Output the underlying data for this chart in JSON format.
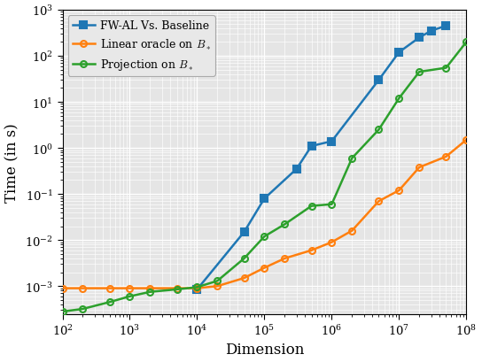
{
  "title": "",
  "xlabel": "Dimension",
  "ylabel": "Time (in s)",
  "xlim": [
    100.0,
    100000000.0
  ],
  "ylim": [
    0.00025,
    1000.0
  ],
  "series": [
    {
      "label": "FW-AL Vs. Baseline",
      "color": "#1f77b4",
      "marker": "s",
      "markerfacecolor": "#1f77b4",
      "x": [
        10000.0,
        50000.0,
        100000.0,
        300000.0,
        500000.0,
        1000000.0,
        5000000.0,
        10000000.0,
        20000000.0,
        30000000.0,
        50000000.0
      ],
      "y": [
        0.00085,
        0.015,
        0.08,
        0.35,
        1.1,
        1.4,
        30,
        120,
        250,
        350,
        450
      ]
    },
    {
      "label": "Linear oracle on $B_*$",
      "color": "#ff7f0e",
      "marker": "o",
      "markerfacecolor": "none",
      "x": [
        100.0,
        200.0,
        500.0,
        1000.0,
        2000.0,
        5000.0,
        10000.0,
        20000.0,
        50000.0,
        100000.0,
        200000.0,
        500000.0,
        1000000.0,
        2000000.0,
        5000000.0,
        10000000.0,
        20000000.0,
        50000000.0,
        100000000.0
      ],
      "y": [
        0.0009,
        0.0009,
        0.0009,
        0.0009,
        0.0009,
        0.0009,
        0.0009,
        0.001,
        0.0015,
        0.0025,
        0.004,
        0.006,
        0.009,
        0.016,
        0.07,
        0.12,
        0.38,
        0.65,
        1.5
      ]
    },
    {
      "label": "Projection on $B_*$",
      "color": "#2ca02c",
      "marker": "o",
      "markerfacecolor": "none",
      "x": [
        100.0,
        200.0,
        500.0,
        1000.0,
        2000.0,
        5000.0,
        10000.0,
        20000.0,
        50000.0,
        100000.0,
        200000.0,
        500000.0,
        1000000.0,
        2000000.0,
        5000000.0,
        10000000.0,
        20000000.0,
        50000000.0,
        100000000.0
      ],
      "y": [
        0.00028,
        0.00032,
        0.00045,
        0.0006,
        0.00075,
        0.00085,
        0.00095,
        0.0013,
        0.004,
        0.012,
        0.022,
        0.055,
        0.06,
        0.6,
        2.5,
        12,
        45,
        55,
        200
      ]
    }
  ]
}
